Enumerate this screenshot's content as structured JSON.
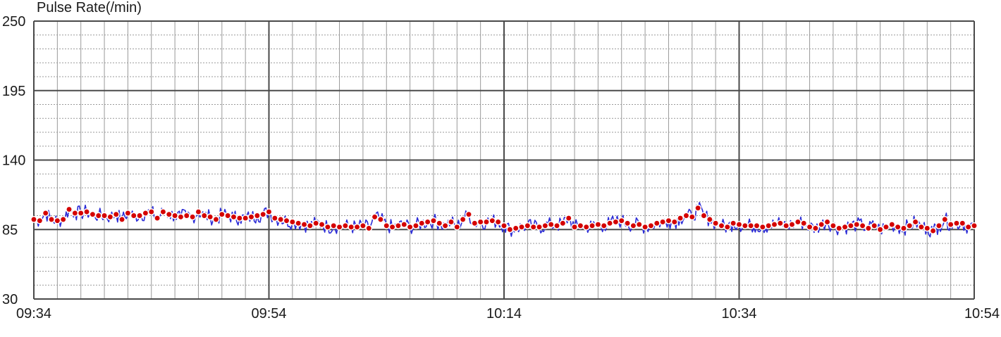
{
  "chart_data": {
    "type": "line",
    "title": "Pulse Rate(/min)",
    "xlabel": "",
    "ylabel": "",
    "y_ticks": [
      "250",
      "195",
      "140",
      "85",
      "30"
    ],
    "ylim": [
      30,
      250
    ],
    "x_ticks": [
      "09:34",
      "09:54",
      "10:14",
      "10:34",
      "10:54"
    ],
    "xlim_minutes": [
      0,
      80
    ],
    "grid": true,
    "colors": {
      "line": "#2b2bd6",
      "marker": "#d40000",
      "grid_major": "#4a4a4a",
      "grid_minor": "#999999"
    },
    "series": [
      {
        "x": [
          0.0,
          0.5,
          1.0,
          1.5,
          2.0,
          2.5,
          3.0,
          3.5,
          4.0,
          4.5,
          5.0,
          5.5,
          6.0,
          6.5,
          7.0,
          7.5,
          8.0,
          8.5,
          9.0,
          9.5,
          10.0,
          10.5,
          11.0,
          11.5,
          12.0,
          12.5,
          13.0,
          13.5,
          14.0,
          14.5,
          15.0,
          15.5,
          16.0,
          16.5,
          17.0,
          17.5,
          18.0,
          18.5,
          19.0,
          19.5,
          20.0,
          20.5,
          21.0,
          21.5,
          22.0,
          22.5,
          23.0,
          23.5,
          24.0,
          24.5,
          25.0,
          25.5,
          26.0,
          26.5,
          27.0,
          27.5,
          28.0,
          28.5,
          29.0,
          29.5,
          30.0,
          30.5,
          31.0,
          31.5,
          32.0,
          32.5,
          33.0,
          33.5,
          34.0,
          34.5,
          35.0,
          35.5,
          36.0,
          36.5,
          37.0,
          37.5,
          38.0,
          38.5,
          39.0,
          39.5,
          40.0,
          40.5,
          41.0,
          41.5,
          42.0,
          42.5,
          43.0,
          43.5,
          44.0,
          44.5,
          45.0,
          45.5,
          46.0,
          46.5,
          47.0,
          47.5,
          48.0,
          48.5,
          49.0,
          49.5,
          50.0,
          50.5,
          51.0,
          51.5,
          52.0,
          52.5,
          53.0,
          53.5,
          54.0,
          54.5,
          55.0,
          55.5,
          56.0,
          56.5,
          57.0,
          57.5,
          58.0,
          58.5,
          59.0,
          59.5,
          60.0,
          60.5,
          61.0,
          61.5,
          62.0,
          62.5,
          63.0,
          63.5,
          64.0,
          64.5,
          65.0,
          65.5,
          66.0,
          66.5,
          67.0,
          67.5,
          68.0,
          68.5,
          69.0,
          69.5,
          70.0,
          70.5,
          71.0,
          71.5,
          72.0,
          72.5,
          73.0,
          73.5,
          74.0,
          74.5,
          75.0,
          75.5,
          76.0,
          76.5,
          77.0,
          77.5,
          78.0,
          78.5,
          79.0,
          79.5,
          80.0
        ],
        "y": [
          93,
          92,
          98,
          93,
          92,
          93,
          101,
          98,
          98,
          99,
          97,
          96,
          96,
          95,
          97,
          93,
          98,
          96,
          96,
          98,
          99,
          94,
          99,
          97,
          96,
          95,
          96,
          95,
          99,
          96,
          95,
          93,
          97,
          96,
          95,
          94,
          94,
          95,
          96,
          97,
          99,
          94,
          93,
          92,
          91,
          90,
          89,
          88,
          90,
          89,
          87,
          88,
          87,
          88,
          87,
          87,
          88,
          86,
          95,
          93,
          88,
          87,
          88,
          89,
          87,
          88,
          90,
          91,
          92,
          90,
          88,
          91,
          87,
          93,
          97,
          90,
          91,
          91,
          92,
          91,
          88,
          85,
          86,
          87,
          88,
          87,
          87,
          88,
          89,
          88,
          90,
          94,
          87,
          88,
          87,
          88,
          89,
          88,
          90,
          91,
          92,
          90,
          88,
          89,
          87,
          88,
          90,
          91,
          92,
          91,
          94,
          96,
          95,
          102,
          96,
          93,
          90,
          88,
          87,
          90,
          89,
          88,
          88,
          88,
          87,
          88,
          89,
          90,
          88,
          89,
          91,
          90,
          87,
          86,
          89,
          91,
          88,
          86,
          87,
          88,
          89,
          88,
          86,
          88,
          85,
          87,
          89,
          87,
          86,
          88,
          91,
          87,
          86,
          84,
          88,
          93,
          89,
          90,
          90,
          87,
          88
        ]
      }
    ]
  }
}
